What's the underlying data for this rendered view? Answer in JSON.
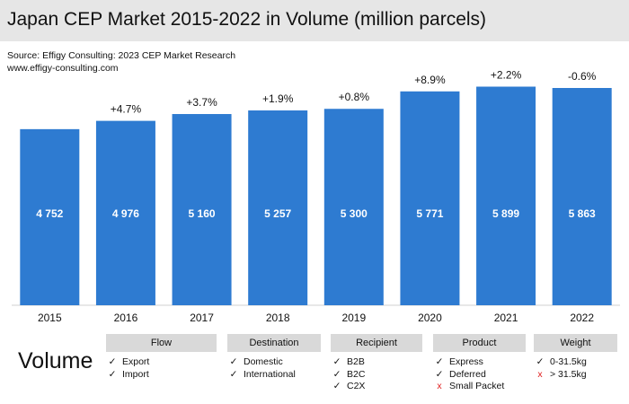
{
  "title": "Japan CEP Market 2015-2022 in Volume (million parcels)",
  "source_lines": [
    "Source: Effigy Consulting: 2023 CEP Market Research",
    "www.effigy-consulting.com"
  ],
  "chart_data": {
    "type": "bar",
    "title": "Japan CEP Market 2015-2022 in Volume (million parcels)",
    "categories": [
      "2015",
      "2016",
      "2017",
      "2018",
      "2019",
      "2020",
      "2021",
      "2022"
    ],
    "values": [
      4752,
      4976,
      5160,
      5257,
      5300,
      5771,
      5899,
      5863
    ],
    "value_labels": [
      "4 752",
      "4 976",
      "5 160",
      "5 257",
      "5 300",
      "5 771",
      "5 899",
      "5 863"
    ],
    "growth_labels": [
      "",
      "+4.7%",
      "+3.7%",
      "+1.9%",
      "+0.8%",
      "+8.9%",
      "+2.2%",
      "-0.6%"
    ],
    "bar_color": "#2e7bd1",
    "ylim": [
      0,
      6000
    ],
    "xlabel": "",
    "ylabel": "",
    "grid": false
  },
  "legend_title": "Volume",
  "categories_panel": [
    {
      "header": "Flow",
      "items": [
        {
          "mark": "check",
          "label": "Export"
        },
        {
          "mark": "check",
          "label": "Import"
        }
      ]
    },
    {
      "header": "Destination",
      "items": [
        {
          "mark": "check",
          "label": "Domestic"
        },
        {
          "mark": "check",
          "label": "International"
        }
      ]
    },
    {
      "header": "Recipient",
      "items": [
        {
          "mark": "check",
          "label": "B2B"
        },
        {
          "mark": "check",
          "label": "B2C"
        },
        {
          "mark": "check",
          "label": "C2X"
        }
      ]
    },
    {
      "header": "Product",
      "items": [
        {
          "mark": "check",
          "label": "Express"
        },
        {
          "mark": "check",
          "label": "Deferred"
        },
        {
          "mark": "cross",
          "label": "Small Packet"
        }
      ]
    },
    {
      "header": "Weight",
      "items": [
        {
          "mark": "check",
          "label": "0-31.5kg"
        },
        {
          "mark": "cross",
          "label": "> 31.5kg"
        }
      ]
    }
  ],
  "marks": {
    "check": "✓",
    "cross": "x"
  }
}
